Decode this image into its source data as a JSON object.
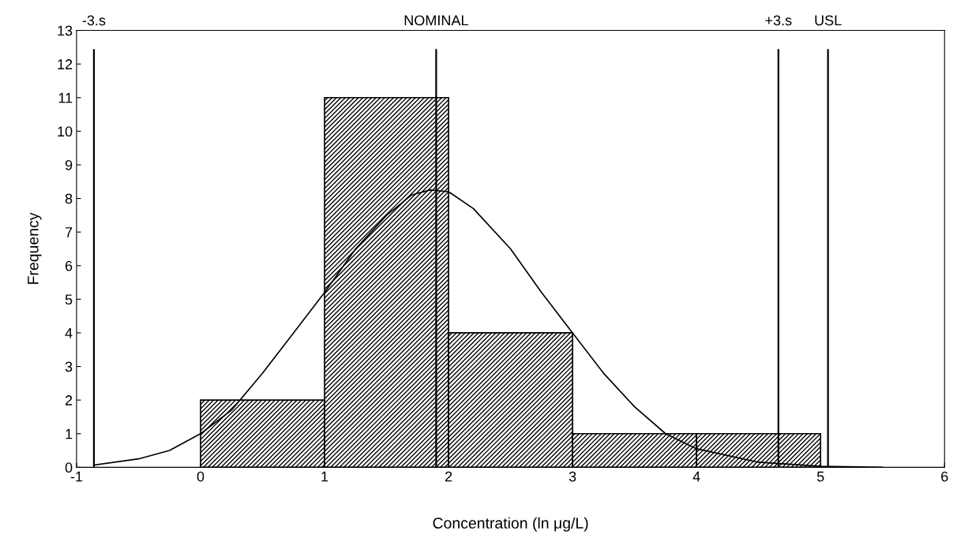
{
  "chart_data": {
    "type": "histogram",
    "xlabel": "Concentration (ln μg/L)",
    "ylabel": "Frequency",
    "bins": [
      0,
      1,
      2,
      3,
      4,
      5
    ],
    "values": [
      2,
      11,
      4,
      1,
      1
    ],
    "color": "#000000",
    "series": [
      {
        "type": "line",
        "color": "#000000",
        "x": [
          -0.85,
          -0.5,
          -0.25,
          0,
          0.25,
          0.5,
          0.75,
          1,
          1.25,
          1.5,
          1.7,
          1.85,
          2.0,
          2.2,
          2.5,
          2.75,
          3,
          3.25,
          3.5,
          3.75,
          4,
          4.5,
          5,
          5.5
        ],
        "values": [
          0.07,
          0.25,
          0.5,
          1.0,
          1.7,
          2.8,
          4.0,
          5.2,
          6.5,
          7.5,
          8.1,
          8.25,
          8.2,
          7.7,
          6.5,
          5.2,
          4.0,
          2.8,
          1.8,
          1.0,
          0.55,
          0.15,
          0.03,
          0.0
        ]
      }
    ],
    "ref_lines": [
      {
        "axis": "x",
        "value": -0.86,
        "label": "-3.s",
        "color": "#000000"
      },
      {
        "axis": "x",
        "value": 1.9,
        "label": "NOMINAL",
        "color": "#000000"
      },
      {
        "axis": "x",
        "value": 4.66,
        "label": "+3.s",
        "color": "#000000"
      },
      {
        "axis": "x",
        "value": 5.06,
        "label": "USL",
        "color": "#000000"
      }
    ],
    "xlim": [
      -1,
      6
    ],
    "xticks": [
      -1,
      0,
      1,
      2,
      3,
      4,
      5,
      6
    ],
    "ylim": [
      0,
      13
    ],
    "yticks": [
      0,
      1,
      2,
      3,
      4,
      5,
      6,
      7,
      8,
      9,
      10,
      11,
      12,
      13
    ],
    "grid": false
  }
}
